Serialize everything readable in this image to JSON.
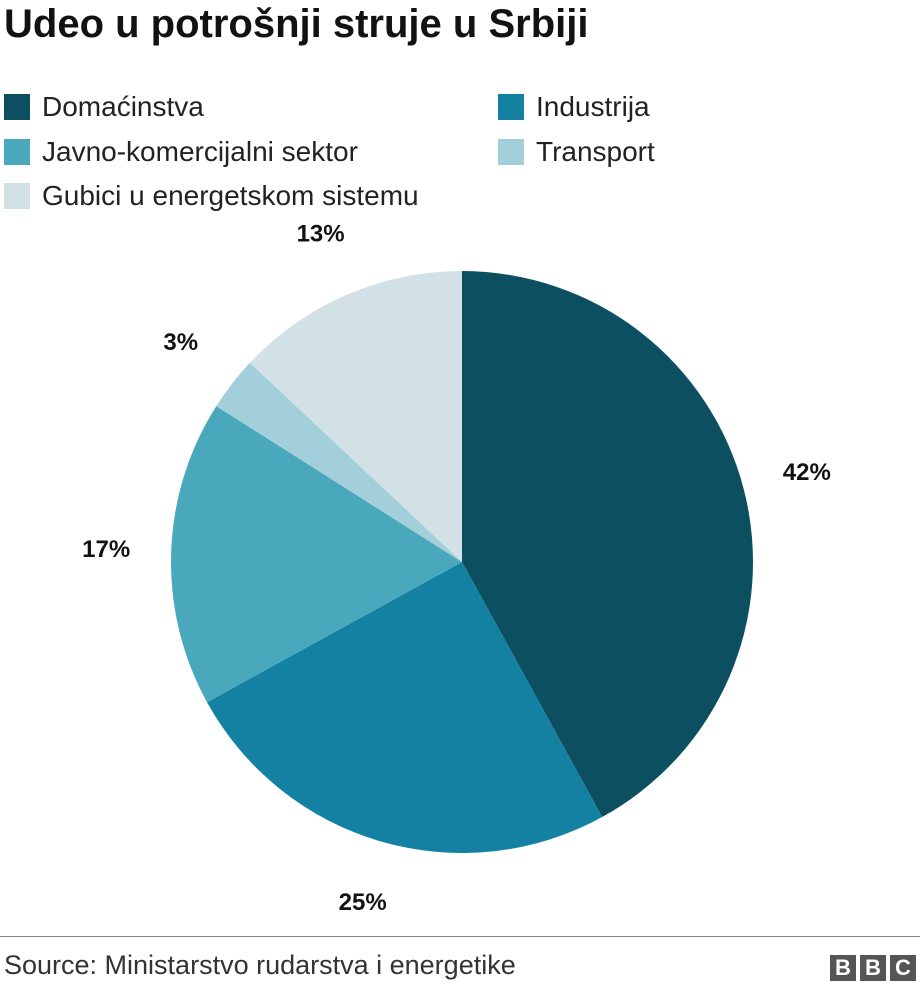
{
  "chart_data": {
    "type": "pie",
    "title": "Udeo u potrošnji struje u Srbiji",
    "slices": [
      {
        "label": "Domaćinstva",
        "value": 42,
        "value_label": "42%",
        "color": "#0b4f61"
      },
      {
        "label": "Industrija",
        "value": 25,
        "value_label": "25%",
        "color": "#1481a3"
      },
      {
        "label": "Javno-komercijalni sektor",
        "value": 17,
        "value_label": "17%",
        "color": "#4aa8bd"
      },
      {
        "label": "Transport",
        "value": 3,
        "value_label": "3%",
        "color": "#a3cfda"
      },
      {
        "label": "Gubici u energetskom sistemu",
        "value": 13,
        "value_label": "13%",
        "color": "#d1e1e6"
      }
    ],
    "legend_position": "top"
  },
  "footer": {
    "source": "Source: Ministarstvo rudarstva i energetike",
    "logo_letters": [
      "B",
      "B",
      "C"
    ]
  }
}
